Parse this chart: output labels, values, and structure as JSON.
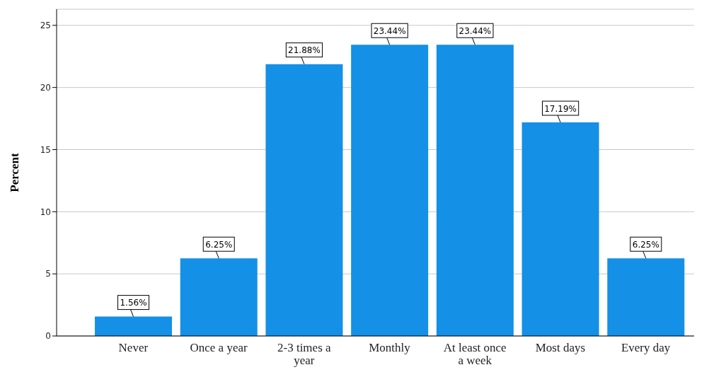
{
  "chart_data": {
    "type": "bar",
    "ylabel": "Percent",
    "categories": [
      "Never",
      "Once a year",
      "2-3 times a year",
      "Monthly",
      "At least once a week",
      "Most days",
      "Every day"
    ],
    "values": [
      1.56,
      6.25,
      21.88,
      23.44,
      23.44,
      17.19,
      6.25
    ],
    "value_labels": [
      "1.56%",
      "6.25%",
      "21.88%",
      "23.44%",
      "23.44%",
      "17.19%",
      "6.25%"
    ],
    "color": "#1490e6",
    "ylim": [
      0,
      26.3
    ],
    "yticks": [
      0,
      5,
      10,
      15,
      20,
      25
    ],
    "grid": "y"
  }
}
